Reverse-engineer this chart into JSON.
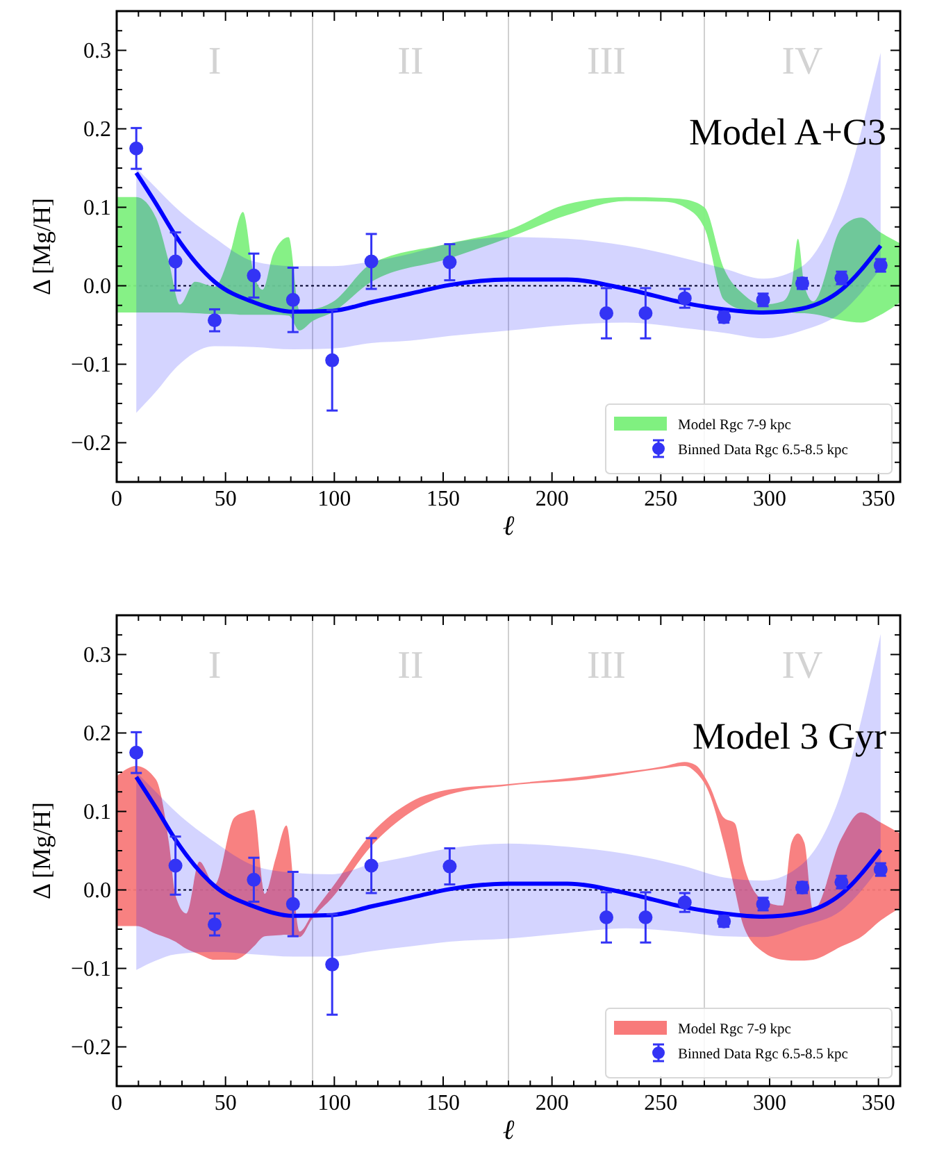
{
  "chart_data": [
    {
      "type": "line",
      "title": "Model A+C3",
      "xlabel": "ℓ",
      "ylabel": "Δ [Mg/H]",
      "xlim": [
        0,
        360
      ],
      "ylim": [
        -0.25,
        0.35
      ],
      "xticks": [
        0,
        50,
        100,
        150,
        200,
        250,
        300,
        350
      ],
      "yticks": [
        {
          "value": -0.2,
          "label": "−0.2"
        },
        {
          "value": -0.1,
          "label": "−0.1"
        },
        {
          "value": 0,
          "label": "0.0"
        },
        {
          "value": 0.1,
          "label": "0.1"
        },
        {
          "value": 0.2,
          "label": "0.2"
        },
        {
          "value": 0.3,
          "label": "0.3"
        }
      ],
      "legend": "bottom right",
      "series": [
        {
          "name": "Model Rgc 7-9 kpc",
          "color": "#80f080",
          "x": [
            0,
            9,
            18,
            24,
            29,
            36,
            45,
            52,
            58,
            63,
            67,
            72,
            79,
            84,
            90,
            99,
            117,
            153,
            180,
            207,
            234,
            252,
            261,
            270,
            279,
            288,
            297,
            306,
            310,
            313,
            316,
            320,
            333,
            342,
            351,
            360
          ],
          "values": [
            null,
            null,
            null,
            null,
            null,
            null,
            null,
            null,
            null,
            null,
            null,
            null,
            null,
            null,
            null,
            null,
            null,
            null,
            null,
            null,
            null,
            null,
            null,
            null,
            null,
            null,
            null,
            null,
            null,
            null,
            null,
            null,
            null,
            null,
            null,
            null
          ],
          "upper": [
            0.113,
            0.113,
            0.087,
            0.03,
            -0.024,
            0.005,
            -0.001,
            0.04,
            0.094,
            0.015,
            -0.005,
            0.041,
            0.062,
            -0.031,
            -0.03,
            -0.021,
            0.028,
            0.054,
            0.071,
            0.104,
            0.113,
            0.112,
            0.11,
            0.1,
            0.022,
            -0.011,
            -0.024,
            -0.02,
            0.0,
            0.06,
            0.0,
            -0.02,
            0.074,
            0.087,
            0.068,
            0.054
          ],
          "lower": [
            -0.034,
            -0.034,
            -0.034,
            -0.034,
            -0.034,
            -0.035,
            -0.036,
            -0.036,
            -0.037,
            -0.037,
            -0.037,
            -0.037,
            -0.038,
            -0.057,
            -0.045,
            -0.034,
            0.005,
            0.035,
            0.061,
            0.09,
            0.108,
            0.107,
            0.1,
            0.074,
            -0.018,
            -0.031,
            -0.034,
            -0.034,
            -0.034,
            -0.035,
            -0.035,
            -0.036,
            -0.044,
            -0.047,
            -0.037,
            -0.021
          ]
        },
        {
          "color": "#0000ff",
          "x": [
            9,
            18,
            27,
            45,
            63,
            81,
            99,
            117,
            135,
            153,
            180,
            207,
            234,
            261,
            279,
            297,
            315,
            333,
            351
          ],
          "values": [
            0.144,
            0.105,
            0.064,
            0.005,
            -0.021,
            -0.033,
            -0.032,
            -0.021,
            -0.01,
            0.001,
            0.008,
            0.008,
            -0.004,
            -0.022,
            -0.03,
            -0.034,
            -0.029,
            -0.005,
            0.051
          ],
          "lower": [
            -0.162,
            -0.135,
            -0.105,
            -0.077,
            -0.078,
            -0.081,
            -0.08,
            -0.073,
            -0.07,
            -0.064,
            -0.057,
            -0.05,
            -0.047,
            -0.054,
            -0.06,
            -0.067,
            -0.057,
            -0.034,
            0.022
          ],
          "upper": [
            0.15,
            0.125,
            0.1,
            0.061,
            0.031,
            0.025,
            0.025,
            0.031,
            0.041,
            0.054,
            0.062,
            0.06,
            0.051,
            0.035,
            0.022,
            0.009,
            0.025,
            0.113,
            0.297
          ]
        },
        {
          "type": "scatter",
          "name": "Binned Data Rgc 6.5-8.5 kpc",
          "color": "#3333f5",
          "marker": "circle",
          "x": [
            9,
            27,
            45,
            63,
            81,
            99,
            117,
            153,
            225,
            243,
            261,
            279,
            297,
            315,
            333,
            351
          ],
          "values": [
            0.175,
            0.031,
            -0.044,
            0.013,
            -0.018,
            -0.095,
            0.031,
            0.03,
            -0.035,
            -0.035,
            -0.016,
            -0.04,
            -0.018,
            0.003,
            0.01,
            0.026
          ],
          "errors": [
            0.026,
            0.037,
            0.014,
            0.028,
            0.041,
            0.064,
            0.035,
            0.023,
            0.032,
            0.032,
            0.012,
            0.007,
            0.008,
            0.007,
            0.008,
            0.008
          ]
        }
      ],
      "ref_lines": [
        {
          "axis": "x",
          "value": 90,
          "color": "#d0d0d0",
          "line_style": "solid"
        },
        {
          "axis": "x",
          "value": 180,
          "color": "#d0d0d0",
          "line_style": "solid"
        },
        {
          "axis": "x",
          "value": 270,
          "color": "#d0d0d0",
          "line_style": "solid"
        },
        {
          "axis": "y",
          "value": 0,
          "color": "#000000",
          "line_style": "dotted"
        }
      ],
      "annotations": [
        "I",
        "II",
        "III",
        "IV"
      ]
    },
    {
      "type": "line",
      "title": "Model 3 Gyr",
      "xlabel": "ℓ",
      "ylabel": "Δ [Mg/H]",
      "xlim": [
        0,
        360
      ],
      "ylim": [
        -0.25,
        0.35
      ],
      "xticks": [
        0,
        50,
        100,
        150,
        200,
        250,
        300,
        350
      ],
      "yticks": [
        {
          "value": -0.2,
          "label": "−0.2"
        },
        {
          "value": -0.1,
          "label": "−0.1"
        },
        {
          "value": 0,
          "label": "0.0"
        },
        {
          "value": 0.1,
          "label": "0.1"
        },
        {
          "value": 0.2,
          "label": "0.2"
        },
        {
          "value": 0.3,
          "label": "0.3"
        }
      ],
      "legend": "bottom right",
      "series": [
        {
          "name": "Model Rgc 7-9 kpc",
          "color": "#f87a7a",
          "x": [
            0,
            9,
            18,
            24,
            27,
            32,
            38,
            45,
            54,
            60,
            63,
            68,
            73,
            78,
            84,
            90,
            99,
            117,
            135,
            153,
            180,
            216,
            252,
            261,
            266,
            272,
            279,
            284,
            288,
            297,
            306,
            310,
            313,
            316,
            320,
            333,
            342,
            351,
            360
          ],
          "values": [
            null,
            null,
            null,
            null,
            null,
            null,
            null,
            null,
            null,
            null,
            null,
            null,
            null,
            null,
            null,
            null,
            null,
            null,
            null,
            null,
            null,
            null,
            null,
            null,
            null,
            null,
            null,
            null,
            null,
            null,
            null,
            null,
            null,
            null,
            null,
            null,
            null,
            null,
            null
          ],
          "upper": [
            0.145,
            0.158,
            0.141,
            0.06,
            -0.007,
            -0.03,
            0.036,
            0.007,
            0.092,
            0.1,
            0.102,
            -0.005,
            0.04,
            0.082,
            -0.053,
            -0.03,
            0.003,
            0.072,
            0.112,
            0.128,
            0.135,
            0.145,
            0.158,
            0.163,
            0.159,
            0.135,
            0.092,
            0.085,
            0.033,
            -0.013,
            -0.02,
            0.06,
            0.072,
            0.06,
            -0.026,
            0.066,
            0.099,
            0.086,
            0.072
          ],
          "lower": [
            -0.046,
            -0.046,
            -0.056,
            -0.062,
            -0.066,
            -0.075,
            -0.082,
            -0.089,
            -0.089,
            -0.08,
            -0.072,
            -0.059,
            -0.058,
            -0.057,
            -0.06,
            -0.036,
            -0.01,
            0.056,
            0.099,
            0.122,
            0.133,
            0.141,
            0.155,
            0.158,
            0.15,
            0.125,
            0.059,
            0.0,
            -0.046,
            -0.079,
            -0.089,
            -0.09,
            -0.09,
            -0.09,
            -0.089,
            -0.072,
            -0.06,
            -0.039,
            -0.023
          ]
        },
        {
          "color": "#0000ff",
          "x": [
            9,
            18,
            27,
            45,
            63,
            81,
            99,
            117,
            135,
            153,
            180,
            207,
            234,
            261,
            279,
            297,
            315,
            333,
            351
          ],
          "values": [
            0.144,
            0.105,
            0.064,
            0.005,
            -0.021,
            -0.033,
            -0.032,
            -0.021,
            -0.01,
            0.001,
            0.008,
            0.008,
            -0.004,
            -0.022,
            -0.03,
            -0.034,
            -0.029,
            -0.005,
            0.051
          ],
          "lower": [
            -0.102,
            -0.09,
            -0.082,
            -0.079,
            -0.082,
            -0.085,
            -0.085,
            -0.078,
            -0.072,
            -0.066,
            -0.062,
            -0.055,
            -0.049,
            -0.054,
            -0.059,
            -0.06,
            -0.046,
            -0.026,
            0.03
          ],
          "upper": [
            0.15,
            0.125,
            0.1,
            0.061,
            0.031,
            0.022,
            0.02,
            0.033,
            0.043,
            0.053,
            0.059,
            0.055,
            0.046,
            0.03,
            0.016,
            0.012,
            0.033,
            0.125,
            0.326
          ]
        },
        {
          "type": "scatter",
          "name": "Binned Data Rgc 6.5-8.5 kpc",
          "color": "#3333f5",
          "marker": "circle",
          "x": [
            9,
            27,
            45,
            63,
            81,
            99,
            117,
            153,
            225,
            243,
            261,
            279,
            297,
            315,
            333,
            351
          ],
          "values": [
            0.175,
            0.031,
            -0.044,
            0.013,
            -0.018,
            -0.095,
            0.031,
            0.03,
            -0.035,
            -0.035,
            -0.016,
            -0.04,
            -0.018,
            0.003,
            0.01,
            0.026
          ],
          "errors": [
            0.026,
            0.037,
            0.014,
            0.028,
            0.041,
            0.064,
            0.035,
            0.023,
            0.032,
            0.032,
            0.012,
            0.007,
            0.008,
            0.007,
            0.008,
            0.008
          ]
        }
      ],
      "ref_lines": [
        {
          "axis": "x",
          "value": 90,
          "color": "#d0d0d0",
          "line_style": "solid"
        },
        {
          "axis": "x",
          "value": 180,
          "color": "#d0d0d0",
          "line_style": "solid"
        },
        {
          "axis": "x",
          "value": 270,
          "color": "#d0d0d0",
          "line_style": "solid"
        },
        {
          "axis": "y",
          "value": 0,
          "color": "#000000",
          "line_style": "dotted"
        }
      ],
      "annotations": [
        "I",
        "II",
        "III",
        "IV"
      ]
    }
  ]
}
